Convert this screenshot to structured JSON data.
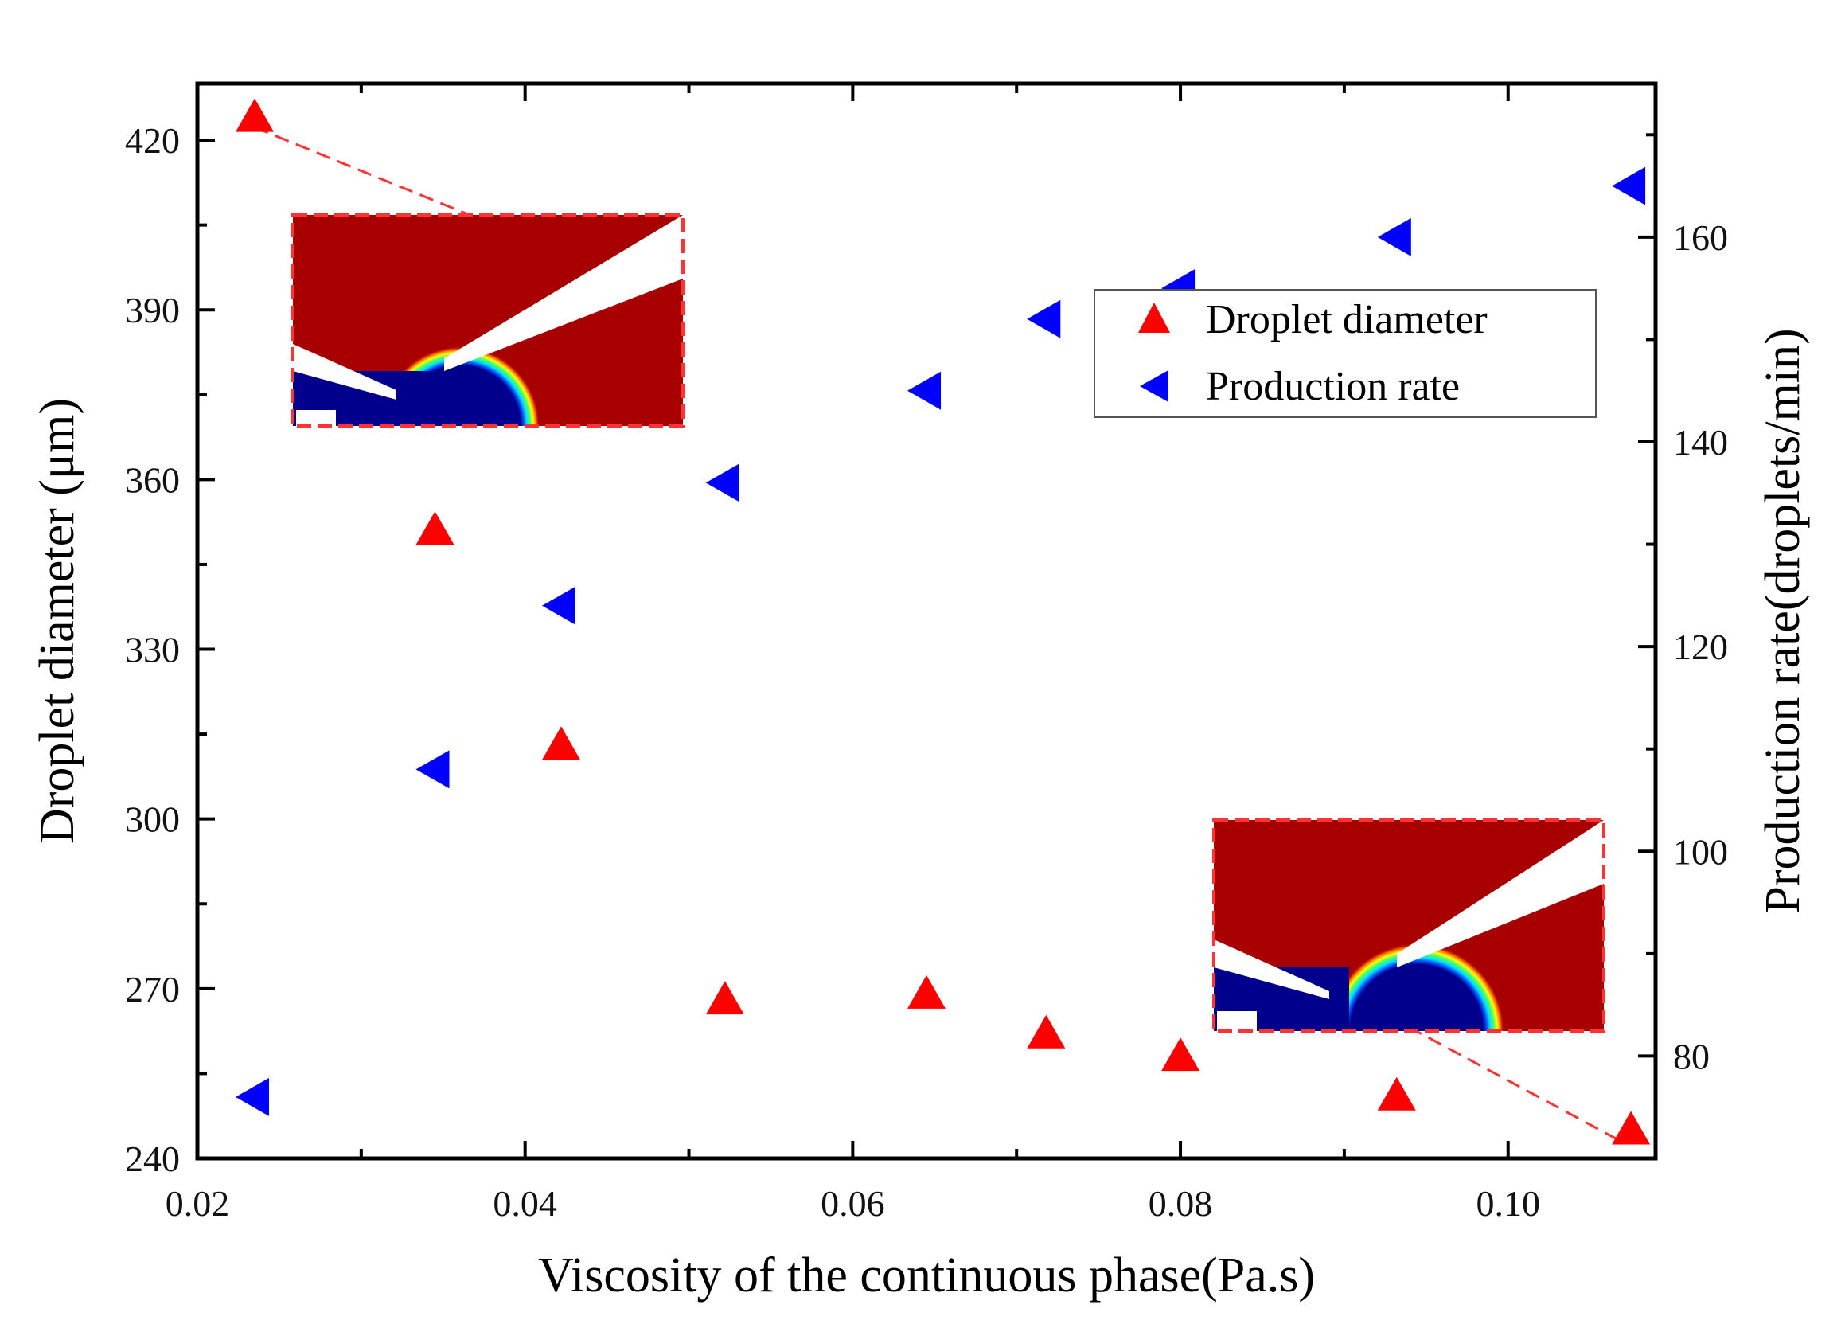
{
  "chart_data": {
    "type": "scatter",
    "title": "",
    "xlabel": "Viscosity of the continuous phase(Pa.s)",
    "ylabel": "Droplet diameter (μm)",
    "y2label": "Production rate(droplets/min)",
    "xlim": [
      0.02,
      0.109
    ],
    "ylim": [
      240,
      430
    ],
    "y2lim": [
      70,
      175
    ],
    "x_ticks": [
      "0.02",
      "0.04",
      "0.06",
      "0.08",
      "0.10"
    ],
    "x_tick_values": [
      0.02,
      0.04,
      0.06,
      0.08,
      0.1
    ],
    "y_ticks": [
      "240",
      "270",
      "300",
      "330",
      "360",
      "390",
      "420"
    ],
    "y_tick_values": [
      240,
      270,
      300,
      330,
      360,
      390,
      420
    ],
    "y2_ticks": [
      "80",
      "100",
      "120",
      "140",
      "160"
    ],
    "y2_tick_values": [
      80,
      100,
      120,
      140,
      160
    ],
    "grid": false,
    "legend_position": "upper-right",
    "series": [
      {
        "name": "Droplet diameter",
        "axis": "left",
        "marker": "triangle-up",
        "color": "#ff0000",
        "points": [
          {
            "x": 0.0235,
            "y": 424
          },
          {
            "x": 0.0345,
            "y": 351
          },
          {
            "x": 0.0422,
            "y": 313
          },
          {
            "x": 0.0522,
            "y": 268
          },
          {
            "x": 0.0645,
            "y": 269
          },
          {
            "x": 0.0718,
            "y": 262
          },
          {
            "x": 0.08,
            "y": 258
          },
          {
            "x": 0.0932,
            "y": 251
          },
          {
            "x": 0.1075,
            "y": 245
          }
        ]
      },
      {
        "name": "Production rate",
        "axis": "right",
        "marker": "triangle-left",
        "color": "#0000ff",
        "points": [
          {
            "x": 0.0235,
            "y": 76
          },
          {
            "x": 0.0345,
            "y": 108
          },
          {
            "x": 0.0422,
            "y": 124
          },
          {
            "x": 0.0522,
            "y": 136
          },
          {
            "x": 0.0645,
            "y": 145
          },
          {
            "x": 0.0718,
            "y": 152
          },
          {
            "x": 0.08,
            "y": 155
          },
          {
            "x": 0.0932,
            "y": 160
          },
          {
            "x": 0.1075,
            "y": 165
          }
        ]
      }
    ],
    "insets": [
      {
        "name": "simulation-inset-low-viscosity",
        "linked_point": 0
      },
      {
        "name": "simulation-inset-high-viscosity",
        "linked_point": 8
      }
    ],
    "colors": {
      "axis": "#000000",
      "inset_border": "#ff3333",
      "phase_continuous": "#a80000",
      "phase_dispersed": "#00008c"
    }
  }
}
